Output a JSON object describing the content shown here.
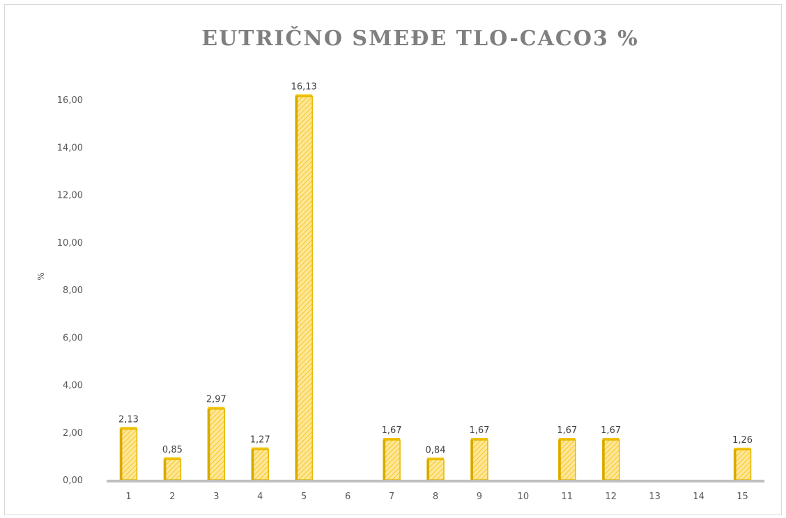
{
  "chart_data": {
    "type": "bar",
    "title": "EUTRIČNO SMEĐE TLO-CACO3 %",
    "xlabel": "",
    "ylabel": "%",
    "categories": [
      "1",
      "2",
      "3",
      "4",
      "5",
      "6",
      "7",
      "8",
      "9",
      "10",
      "11",
      "12",
      "13",
      "14",
      "15"
    ],
    "values": [
      2.13,
      0.85,
      2.97,
      1.27,
      16.13,
      null,
      1.67,
      0.84,
      1.67,
      null,
      1.67,
      1.67,
      null,
      null,
      1.26
    ],
    "data_labels": [
      "2,13",
      "0,85",
      "2,97",
      "1,27",
      "16,13",
      "",
      "1,67",
      "0,84",
      "1,67",
      "",
      "1,67",
      "1,67",
      "",
      "",
      "1,26"
    ],
    "ylim": [
      0,
      16
    ],
    "yticks": [
      0,
      2,
      4,
      6,
      8,
      10,
      12,
      14,
      16
    ],
    "ytick_labels": [
      "0,00",
      "2,00",
      "4,00",
      "6,00",
      "8,00",
      "10,00",
      "12,00",
      "14,00",
      "16,00"
    ],
    "grid": false,
    "legend": "none",
    "colors": {
      "bar_fill": "#ffe699",
      "bar_hatch": "#f2c200",
      "bar_edge": "#e6b800",
      "axis_line": "#bfbfbf",
      "title": "#7f7f7f"
    }
  }
}
